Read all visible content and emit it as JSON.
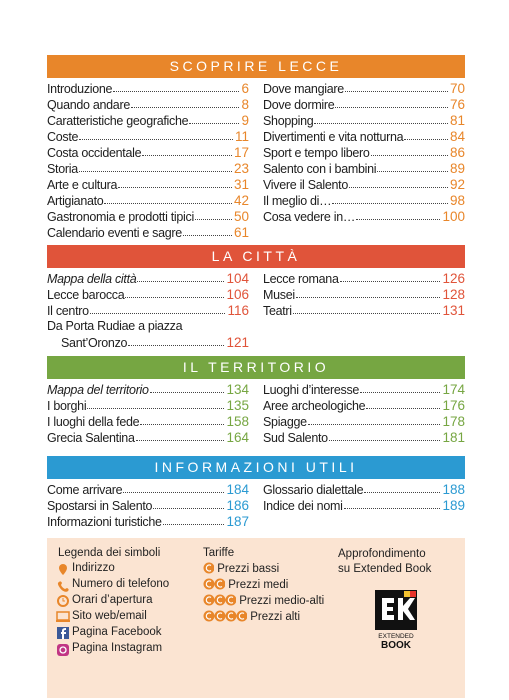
{
  "sections": [
    {
      "title": "SCOPRIRE LECCE",
      "left": [
        {
          "title": "Introduzione",
          "page": 6
        },
        {
          "title": "Quando andare",
          "page": 8
        },
        {
          "title": "Caratteristiche geografiche",
          "page": 9
        },
        {
          "title": "Coste",
          "page": 11
        },
        {
          "title": "Costa occidentale",
          "page": 17
        },
        {
          "title": "Storia",
          "page": 23
        },
        {
          "title": "Arte e cultura",
          "page": 31
        },
        {
          "title": "Artigianato",
          "page": 42
        },
        {
          "title": "Gastronomia e prodotti tipici",
          "page": 50
        },
        {
          "title": "Calendario eventi e sagre",
          "page": 61
        }
      ],
      "right": [
        {
          "title": "Dove mangiare",
          "page": 70
        },
        {
          "title": "Dove dormire",
          "page": 76
        },
        {
          "title": "Shopping",
          "page": 81
        },
        {
          "title": "Divertimenti e vita notturna",
          "page": 84
        },
        {
          "title": "Sport e tempo libero",
          "page": 86
        },
        {
          "title": "Salento con i bambini",
          "page": 89
        },
        {
          "title": "Vivere il Salento",
          "page": 92
        },
        {
          "title": "Il meglio di…",
          "page": 98
        },
        {
          "title": "Cosa vedere in…",
          "page": 100
        }
      ]
    },
    {
      "title": "LA CITTÀ",
      "left": [
        {
          "title": "Mappa della città",
          "page": 104,
          "italic": true
        },
        {
          "title": "Lecce barocca",
          "page": 106
        },
        {
          "title": "Il centro",
          "page": 116
        },
        {
          "lines": [
            "Da Porta Rudiae a piazza",
            "Sant’Oronzo"
          ],
          "page": 121
        }
      ],
      "right": [
        {
          "title": "Lecce romana",
          "page": 126
        },
        {
          "title": "Musei",
          "page": 128
        },
        {
          "title": "Teatri",
          "page": 131
        }
      ]
    },
    {
      "title": "IL TERRITORIO",
      "left": [
        {
          "title": "Mappa del territorio",
          "page": 134,
          "italic": true
        },
        {
          "title": "I borghi",
          "page": 135
        },
        {
          "title": "I luoghi della fede",
          "page": 158
        },
        {
          "title": "Grecia Salentina",
          "page": 164
        }
      ],
      "right": [
        {
          "title": "Luoghi d’interesse",
          "page": 174
        },
        {
          "title": "Aree archeologiche",
          "page": 176
        },
        {
          "title": "Spiagge",
          "page": 178
        },
        {
          "title": "Sud Salento",
          "page": 181
        }
      ]
    },
    {
      "title": "INFORMAZIONI UTILI",
      "left": [
        {
          "title": "Come arrivare",
          "page": 184
        },
        {
          "title": "Spostarsi in Salento",
          "page": 186
        },
        {
          "title": "Informazioni turistiche",
          "page": 187
        }
      ],
      "right": [
        {
          "title": "Glossario dialettale",
          "page": 188
        },
        {
          "title": "Indice dei nomi",
          "page": 189
        }
      ]
    }
  ],
  "legend": {
    "symbols_title": "Legenda dei simboli",
    "symbols": [
      "Indirizzo",
      "Numero di telefono",
      "Orari d’apertura",
      "Sito web/email",
      "Pagina Facebook",
      "Pagina Instagram"
    ],
    "prices_title": "Tariffe",
    "prices": [
      "Prezzi bassi",
      "Prezzi medi",
      "Prezzi medio-alti",
      "Prezzi alti"
    ],
    "extended_title": [
      "Approfondimento",
      "su Extended Book"
    ],
    "logo": [
      "EXTENDED",
      "BOOK"
    ]
  }
}
